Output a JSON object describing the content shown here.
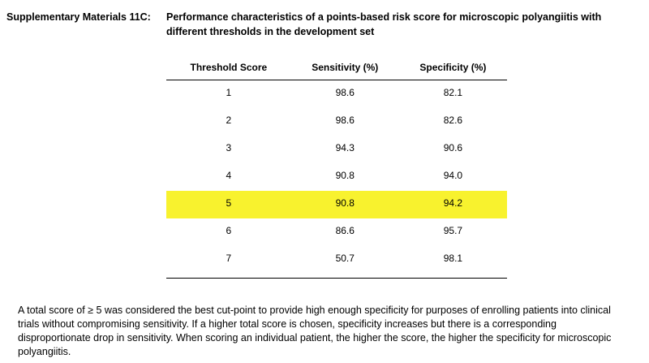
{
  "header": {
    "label": "Supplementary Materials 11C:",
    "title": "Performance characteristics of a points-based risk score for microscopic polyangiitis with different thresholds in the development set"
  },
  "table": {
    "columns": [
      "Threshold Score",
      "Sensitivity (%)",
      "Specificity (%)"
    ],
    "rows": [
      [
        "1",
        "98.6",
        "82.1"
      ],
      [
        "2",
        "98.6",
        "82.6"
      ],
      [
        "3",
        "94.3",
        "90.6"
      ],
      [
        "4",
        "90.8",
        "94.0"
      ],
      [
        "5",
        "90.8",
        "94.2"
      ],
      [
        "6",
        "86.6",
        "95.7"
      ],
      [
        "7",
        "50.7",
        "98.1"
      ]
    ]
  },
  "note": "A total score of ≥ 5 was considered the best cut-point to provide high enough specificity for purposes of enrolling patients into clinical trials without compromising sensitivity.  If a higher total score is chosen, specificity increases but there is a corresponding disproportionate drop in sensitivity.  When scoring an individual patient, the higher the score, the higher the specificity for microscopic polyangiitis."
}
